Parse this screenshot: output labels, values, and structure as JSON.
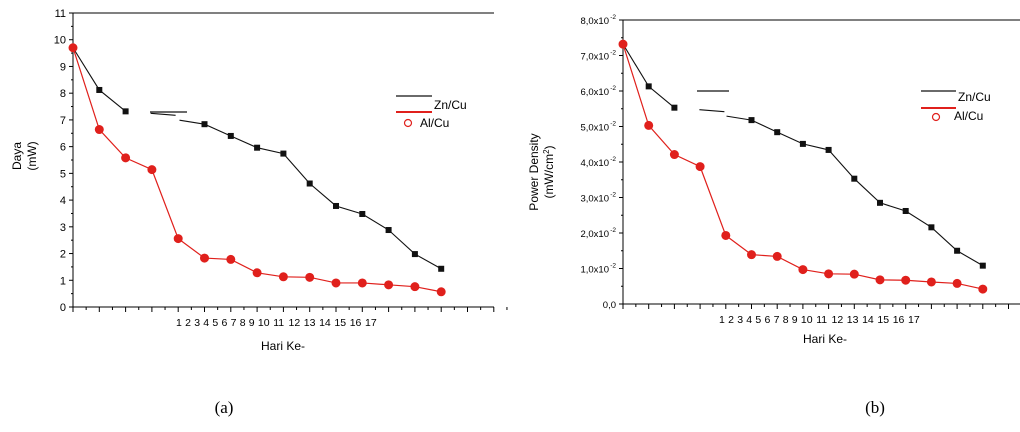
{
  "colors": {
    "zn": "#111111",
    "al": "#e0201c",
    "axis": "#000000"
  },
  "chart_data": [
    {
      "type": "line",
      "caption": "(a)",
      "xlabel": "Hari Ke-",
      "ylabel": [
        "Daya",
        "(mW)"
      ],
      "x_tick_labels": [
        "1",
        "2",
        "3",
        "4",
        "5",
        "6",
        "7",
        "8",
        "9",
        "10",
        "11",
        "12",
        "13",
        "14",
        "15",
        "16",
        "17"
      ],
      "ylim": [
        0,
        11
      ],
      "y_ticks": [
        "0",
        "1",
        "2",
        "3",
        "4",
        "5",
        "6",
        "7",
        "8",
        "9",
        "10",
        "11"
      ],
      "legend": [
        "Zn/Cu",
        "Al/Cu"
      ],
      "series": [
        {
          "name": "Zn/Cu",
          "marker": "square",
          "values": [
            9.7,
            8.12,
            7.32,
            null,
            null,
            6.84,
            6.4,
            5.96,
            5.74,
            4.62,
            3.78,
            3.48,
            2.88,
            1.98,
            1.43
          ]
        },
        {
          "name": "Al/Cu",
          "marker": "circle",
          "values": [
            9.7,
            6.64,
            5.58,
            5.14,
            2.56,
            1.83,
            1.78,
            1.28,
            1.13,
            1.11,
            0.9,
            0.9,
            0.83,
            0.76,
            0.57
          ]
        }
      ]
    },
    {
      "type": "line",
      "caption": "(b)",
      "xlabel": "Hari Ke-",
      "ylabel": [
        "Power Density",
        "(mW/cm",
        "2",
        ")"
      ],
      "x_tick_labels": [
        "1",
        "2",
        "3",
        "4",
        "5",
        "6",
        "7",
        "8",
        "9",
        "10",
        "11",
        "12",
        "13",
        "14",
        "15",
        "16",
        "17"
      ],
      "ylim": [
        0,
        0.08
      ],
      "y_ticks": [
        {
          "mant": "0,0",
          "exp": ""
        },
        {
          "mant": "1,0x10",
          "exp": "-2"
        },
        {
          "mant": "2,0x10",
          "exp": "-2"
        },
        {
          "mant": "3,0x10",
          "exp": "-2"
        },
        {
          "mant": "4,0x10",
          "exp": "-2"
        },
        {
          "mant": "5,0x10",
          "exp": "-2"
        },
        {
          "mant": "6,0x10",
          "exp": "-2"
        },
        {
          "mant": "7,0x10",
          "exp": "-2"
        },
        {
          "mant": "8,0x10",
          "exp": "-2"
        }
      ],
      "legend": [
        "Zn/Cu",
        "Al/Cu"
      ],
      "series": [
        {
          "name": "Zn/Cu",
          "marker": "square",
          "values": [
            0.0732,
            0.0613,
            0.0553,
            null,
            null,
            0.0518,
            0.0484,
            0.0451,
            0.0434,
            0.0353,
            0.0285,
            0.0262,
            0.0216,
            0.015,
            0.0108
          ]
        },
        {
          "name": "Al/Cu",
          "marker": "circle",
          "values": [
            0.0732,
            0.0503,
            0.0421,
            0.0387,
            0.0193,
            0.0139,
            0.0134,
            0.0097,
            0.0085,
            0.0084,
            0.0068,
            0.0067,
            0.0062,
            0.0058,
            0.0042
          ]
        }
      ]
    }
  ]
}
